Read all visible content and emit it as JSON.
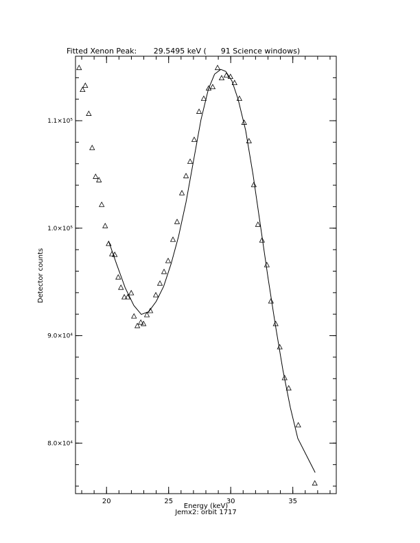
{
  "chart_data": {
    "type": "scatter",
    "title": "Fitted Xenon Peak:       29.5495 keV (      91 Science windows)",
    "x_label": "Energy (keV)",
    "subtitle": "Jemx2: orbit 1717",
    "y_label": "Detector counts",
    "xlim": [
      17.5,
      38.5
    ],
    "ylim": [
      75300,
      116000
    ],
    "xticks": [
      20,
      25,
      30,
      35
    ],
    "yticks": [
      {
        "value": 80000,
        "label": "8.0×10⁴"
      },
      {
        "value": 90000,
        "label": "9.0×10⁴"
      },
      {
        "value": 100000,
        "label": "1.0×10⁵"
      },
      {
        "value": 110000,
        "label": "1.1×10⁵"
      }
    ],
    "series": [
      {
        "type": "scatter",
        "color": "#000000",
        "x": [
          17.79,
          18.07,
          18.29,
          18.57,
          18.84,
          19.12,
          19.39,
          19.61,
          19.89,
          20.17,
          20.44,
          20.66,
          20.94,
          21.16,
          21.43,
          21.71,
          21.99,
          22.21,
          22.48,
          22.76,
          22.98,
          23.25,
          23.53,
          23.97,
          24.3,
          24.63,
          24.96,
          25.35,
          25.68,
          26.07,
          26.4,
          26.73,
          27.06,
          27.45,
          27.83,
          28.22,
          28.55,
          28.94,
          29.27,
          29.65,
          29.98,
          30.31,
          30.7,
          31.08,
          31.47,
          31.86,
          32.19,
          32.52,
          32.91,
          33.24,
          33.62,
          33.95,
          34.34,
          34.67,
          35.44,
          36.77
        ],
        "values": [
          114904,
          112866,
          113248,
          110637,
          107452,
          104777,
          104459,
          102166,
          100191,
          98535,
          97580,
          97516,
          95414,
          94459,
          93568,
          93568,
          93950,
          91784,
          90893,
          91211,
          91084,
          91912,
          92294,
          93759,
          94841,
          95924,
          96943,
          98918,
          100574,
          103249,
          104841,
          106178,
          108217,
          110828,
          112038,
          112993,
          113121,
          114904,
          113949,
          114204,
          114076,
          113503,
          112038,
          109809,
          108089,
          104013,
          100318,
          98854,
          96561,
          93186,
          91084,
          88918,
          86051,
          85096,
          81657,
          76244
        ]
      },
      {
        "type": "line",
        "color": "#000000",
        "x": [
          20.17,
          20.8,
          21.5,
          22.2,
          22.8,
          23.4,
          24.0,
          24.6,
          25.2,
          25.8,
          26.4,
          27.0,
          27.6,
          28.2,
          28.7,
          29.2,
          29.6,
          30.1,
          30.6,
          31.2,
          31.8,
          32.4,
          33.0,
          33.6,
          34.2,
          34.8,
          35.4,
          36.8
        ],
        "values": [
          98790,
          96689,
          94459,
          92804,
          91976,
          92231,
          93186,
          94586,
          96689,
          99236,
          102421,
          106242,
          110064,
          112930,
          114331,
          114777,
          114586,
          113694,
          111974,
          109108,
          104968,
          100191,
          95414,
          90956,
          86816,
          83313,
          80447,
          77262
        ]
      }
    ]
  }
}
